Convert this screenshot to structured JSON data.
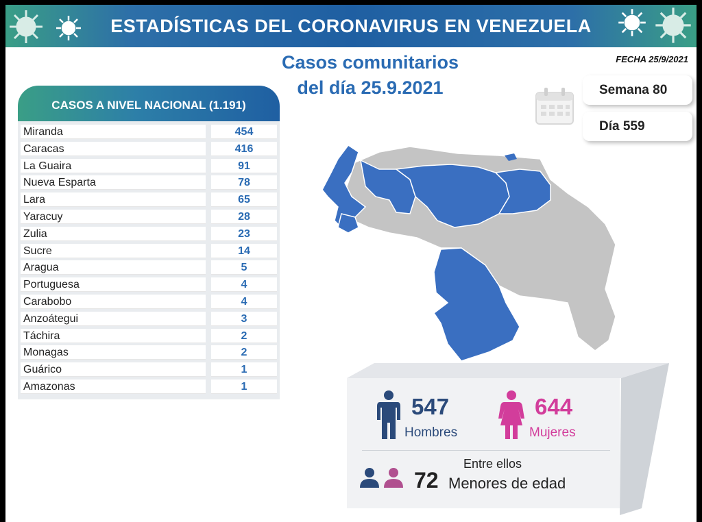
{
  "header": {
    "title": "ESTADÍSTICAS DEL CORONAVIRUS EN VENEZUELA",
    "date": "FECHA 25/9/2021"
  },
  "subtitle": {
    "line1": "Casos comunitarios",
    "line2": "del día 25.9.2021"
  },
  "table": {
    "title": "CASOS A NIVEL NACIONAL (1.191)",
    "rows": [
      {
        "state": "Miranda",
        "cases": "454"
      },
      {
        "state": "Caracas",
        "cases": "416"
      },
      {
        "state": "La Guaira",
        "cases": "91"
      },
      {
        "state": "Nueva Esparta",
        "cases": "78"
      },
      {
        "state": "Lara",
        "cases": "65"
      },
      {
        "state": "Yaracuy",
        "cases": "28"
      },
      {
        "state": "Zulia",
        "cases": "23"
      },
      {
        "state": "Sucre",
        "cases": "14"
      },
      {
        "state": "Aragua",
        "cases": "5"
      },
      {
        "state": "Portuguesa",
        "cases": "4"
      },
      {
        "state": "Carabobo",
        "cases": "4"
      },
      {
        "state": "Anzoátegui",
        "cases": "3"
      },
      {
        "state": "Táchira",
        "cases": "2"
      },
      {
        "state": "Monagas",
        "cases": "2"
      },
      {
        "state": "Guárico",
        "cases": "1"
      },
      {
        "state": "Amazonas",
        "cases": "1"
      }
    ]
  },
  "calendar": {
    "week": "Semana 80",
    "day": "Día 559",
    "icon": "calendar-icon"
  },
  "stats": {
    "men_count": "547",
    "men_label": "Hombres",
    "women_count": "644",
    "women_label": "Mujeres",
    "between_label": "Entre ellos",
    "minors_count": "72",
    "minors_label": "Menores de edad"
  },
  "colors": {
    "accent_blue": "#2a6bb3",
    "map_affected": "#3a6fc1",
    "map_unaffected": "#c4c4c4",
    "men": "#2b4a7a",
    "women": "#d23d9b",
    "banner_teal": "#3a9e86"
  },
  "map": {
    "icon": "venezuela-map"
  }
}
